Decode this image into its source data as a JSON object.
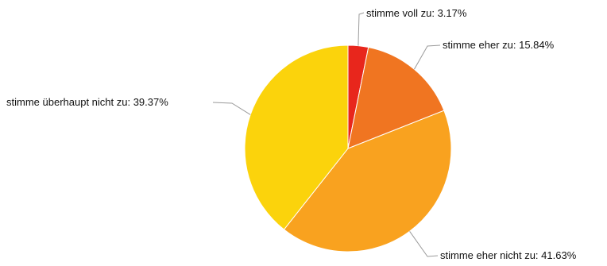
{
  "chart_data": {
    "type": "pie",
    "slices": [
      {
        "label": "stimme voll zu: 3.17%",
        "value": 3.17,
        "color": "#e8261c"
      },
      {
        "label": "stimme eher zu: 15.84%",
        "value": 15.84,
        "color": "#f07521"
      },
      {
        "label": "stimme eher nicht zu: 41.63%",
        "value": 41.63,
        "color": "#f9a21f"
      },
      {
        "label": "stimme überhaupt nicht zu: 39.37%",
        "value": 39.37,
        "color": "#fbd30c"
      }
    ],
    "start_angle_deg": 0,
    "direction": "clockwise",
    "legend": "none",
    "data_labels": "outside-with-leader-lines"
  }
}
